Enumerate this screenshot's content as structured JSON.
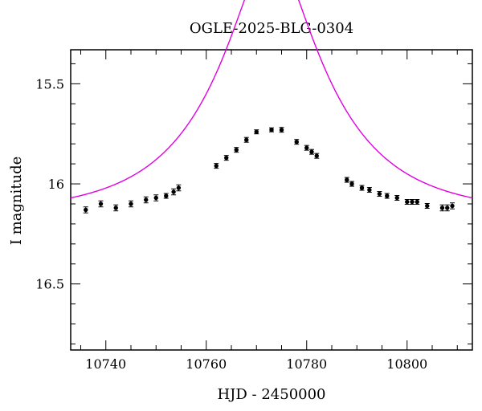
{
  "chart_data": {
    "type": "scatter",
    "title": "OGLE-2025-BLG-0304",
    "xlabel": "HJD - 2450000",
    "ylabel": "I magnitude",
    "xlim": [
      10733,
      10813
    ],
    "ylim": [
      16.83,
      15.33
    ],
    "y_inverted": true,
    "xticks_major": [
      10740,
      10760,
      10780,
      10800
    ],
    "xtick_labels": [
      "10740",
      "10760",
      "10780",
      "10800"
    ],
    "xticks_minor_step": 5,
    "yticks_major": [
      15.5,
      16,
      16.5
    ],
    "ytick_labels": [
      "15.5",
      "16",
      "16.5"
    ],
    "yticks_minor_step": 0.1,
    "grid": false,
    "legend": "none",
    "colors": {
      "points": "#000000",
      "model": "#e000e0",
      "axes": "#000000"
    },
    "series": [
      {
        "kind": "points_with_errorbars",
        "x": [
          10736,
          10739,
          10742,
          10745,
          10748,
          10750,
          10752,
          10753.5,
          10754.5,
          10762,
          10764,
          10766,
          10768,
          10770,
          10773,
          10775,
          10778,
          10780,
          10781,
          10782,
          10788,
          10789,
          10791,
          10792.5,
          10794.5,
          10796,
          10798,
          10800,
          10801,
          10802,
          10804,
          10807,
          10808,
          10809
        ],
        "y": [
          16.13,
          16.1,
          16.12,
          16.1,
          16.08,
          16.07,
          16.06,
          16.04,
          16.02,
          15.91,
          15.87,
          15.83,
          15.78,
          15.74,
          15.73,
          15.73,
          15.79,
          15.82,
          15.84,
          15.86,
          15.98,
          16.0,
          16.02,
          16.03,
          16.05,
          16.06,
          16.07,
          16.09,
          16.09,
          16.09,
          16.11,
          16.12,
          16.12,
          16.11
        ],
        "yerr": [
          0.015,
          0.015,
          0.015,
          0.015,
          0.015,
          0.015,
          0.012,
          0.015,
          0.015,
          0.012,
          0.012,
          0.012,
          0.012,
          0.01,
          0.01,
          0.012,
          0.012,
          0.012,
          0.012,
          0.012,
          0.012,
          0.012,
          0.012,
          0.012,
          0.012,
          0.012,
          0.012,
          0.012,
          0.012,
          0.012,
          0.012,
          0.015,
          0.015,
          0.015
        ]
      },
      {
        "kind": "model_curve",
        "t0": 10773,
        "u0": 0.31,
        "tE": 22,
        "I_base": 16.15
      }
    ]
  }
}
